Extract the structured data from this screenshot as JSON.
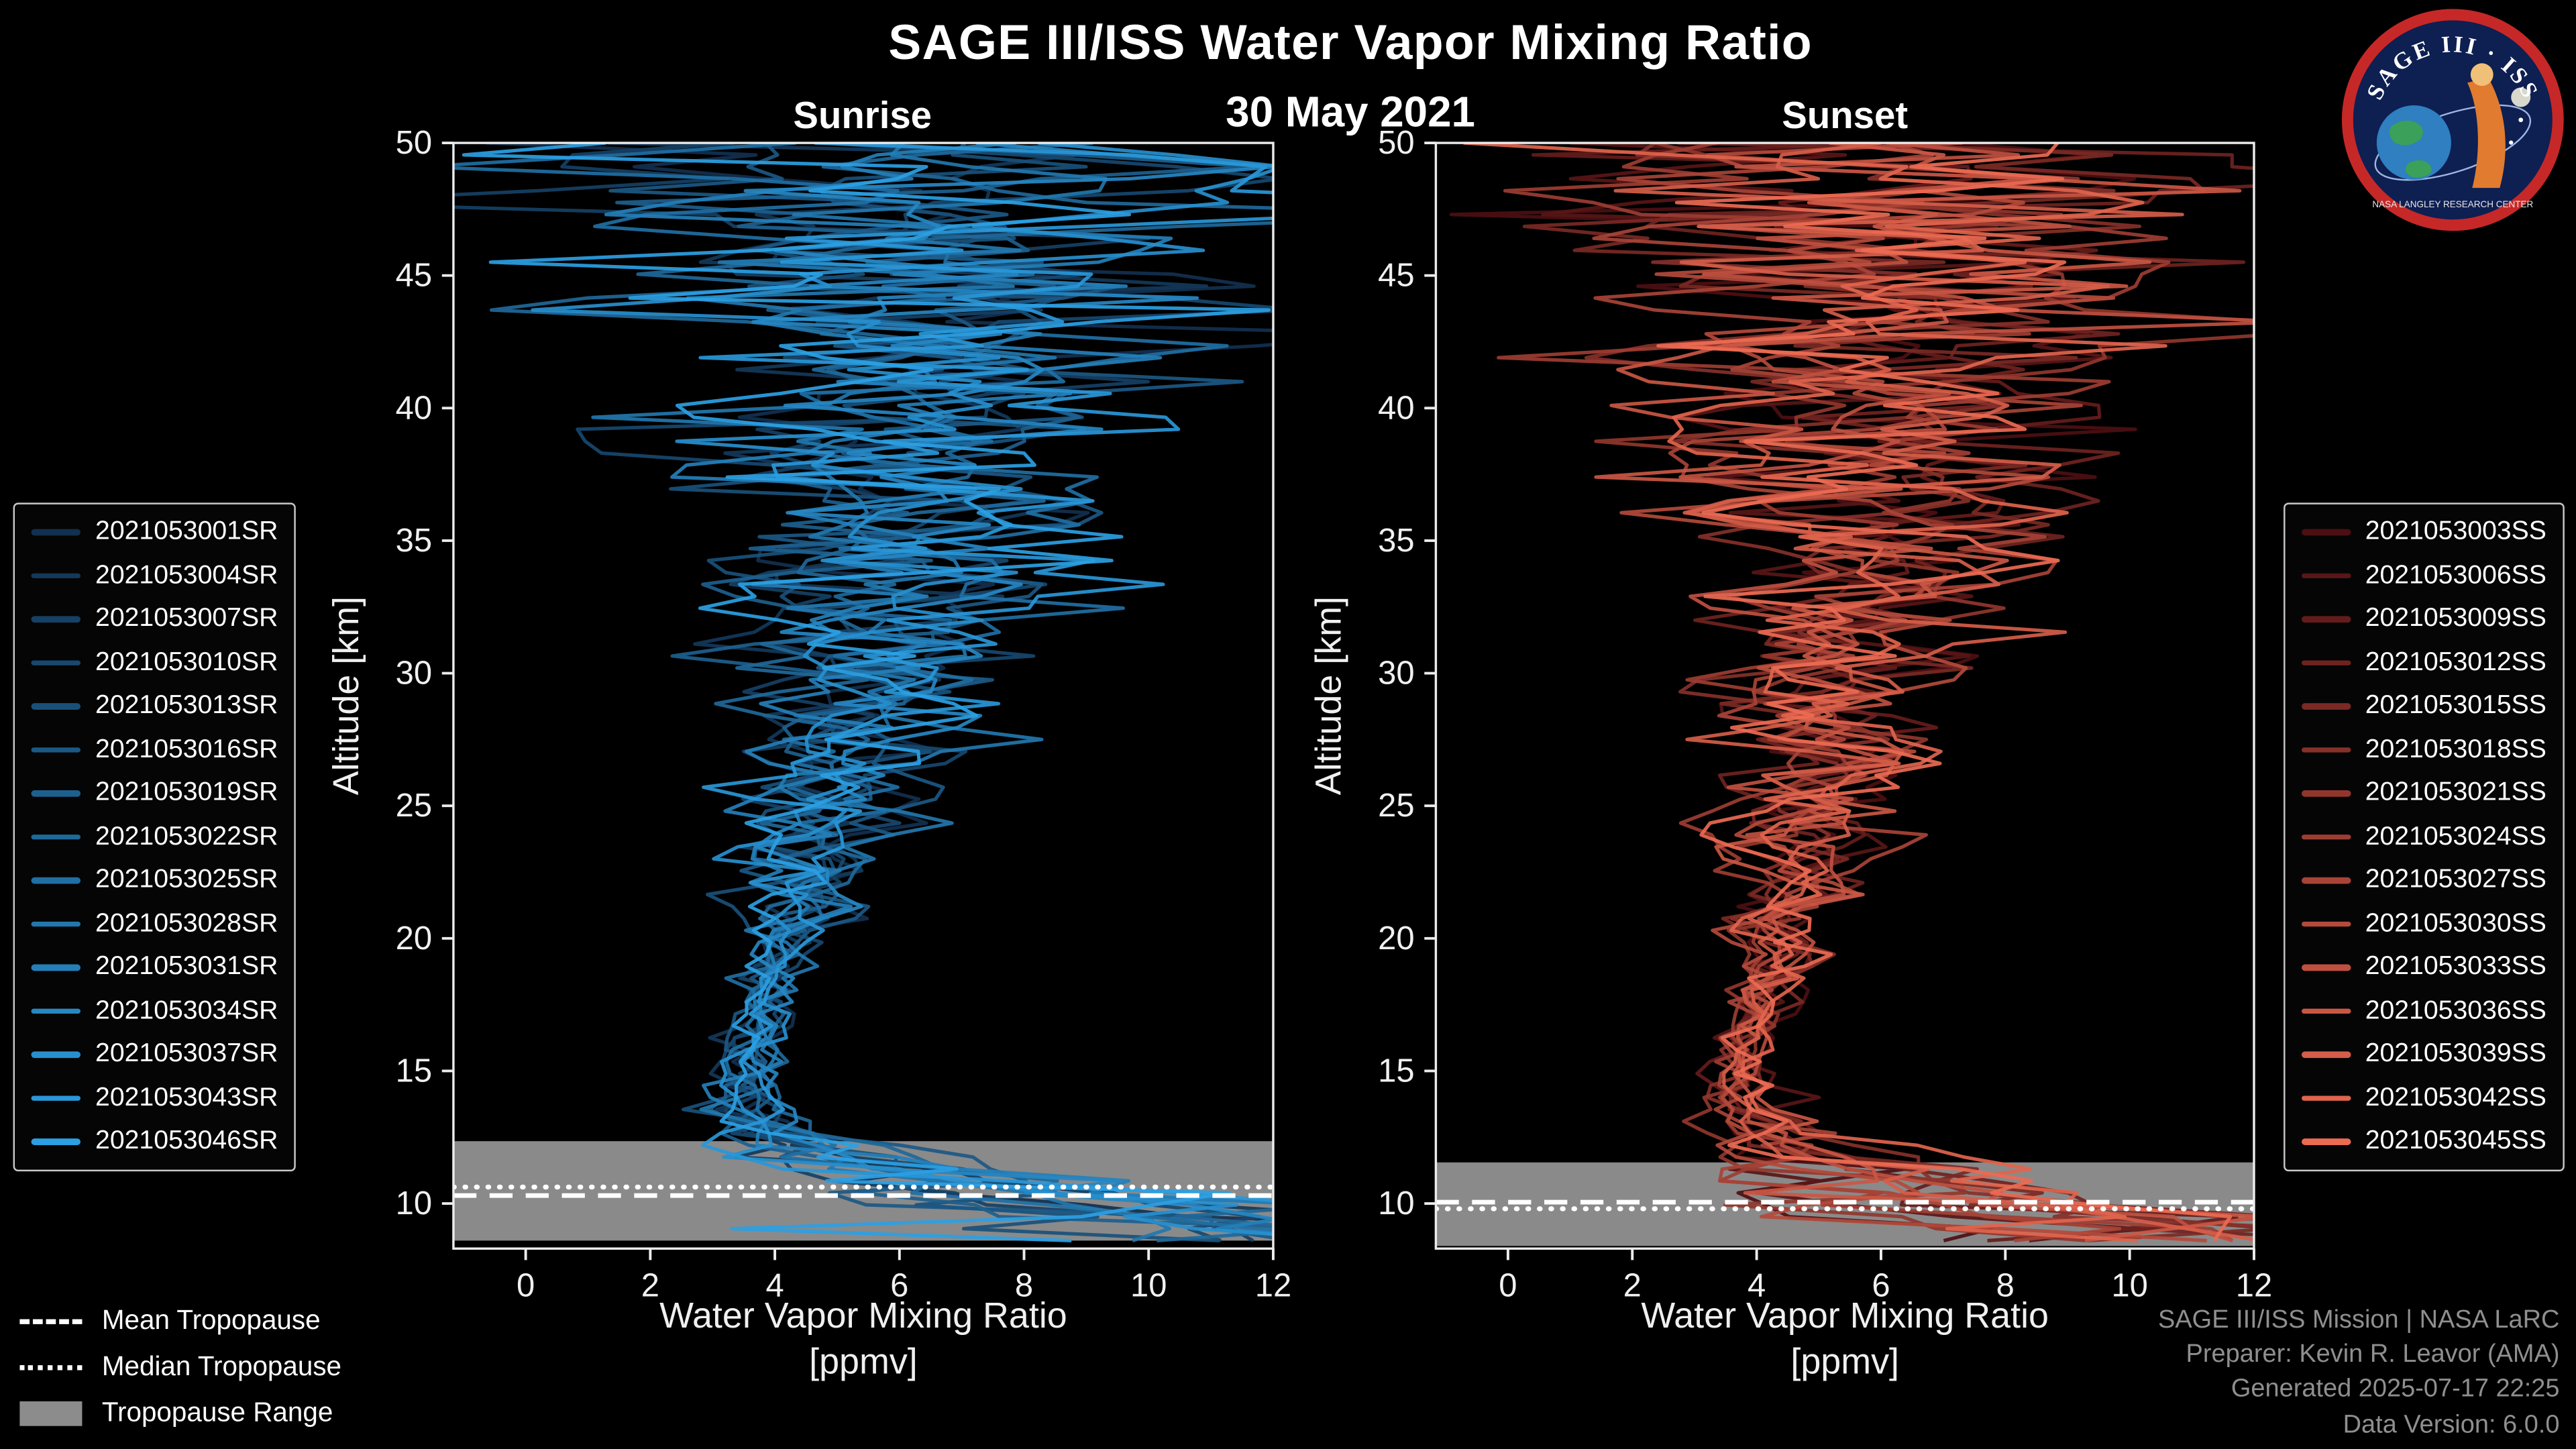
{
  "header": {
    "title": "SAGE III/ISS Water Vapor Mixing Ratio",
    "date": "30 May 2021"
  },
  "logo": {
    "arc_text": "SAGE III · ISS",
    "banner": "NASA LANGLEY RESEARCH CENTER"
  },
  "tropopause_legend": {
    "mean": "Mean Tropopause",
    "median": "Median Tropopause",
    "range": "Tropopause Range"
  },
  "credits": [
    "SAGE III/ISS Mission | NASA LaRC",
    "Preparer: Kevin R. Leavor (AMA)",
    "Generated 2025-07-17 22:25",
    "Data Version: 6.0.0"
  ],
  "chart_data": [
    {
      "type": "line",
      "title": "Sunrise",
      "xlabel": "Water Vapor Mixing Ratio",
      "xlabel2": "[ppmv]",
      "ylabel": "Altitude [km]",
      "xlim": [
        -1.16,
        12
      ],
      "ylim": [
        8.3,
        50
      ],
      "xticks": [
        0,
        2,
        4,
        6,
        8,
        10,
        12
      ],
      "yticks": [
        10,
        15,
        20,
        25,
        30,
        35,
        40,
        45,
        50
      ],
      "grid": false,
      "legend_position": "left",
      "color_dark": "#12304f",
      "color_bright": "#2b9fe3",
      "tropopause": {
        "mean": 10.3,
        "median": 10.62,
        "range": [
          8.6,
          12.35
        ]
      },
      "profile": {
        "step": 0.45,
        "mean": [
          [
            8.3,
            11.6
          ],
          [
            9,
            10.2
          ],
          [
            9.5,
            9.2
          ],
          [
            10,
            8.0
          ],
          [
            10.5,
            6.9
          ],
          [
            11,
            5.9
          ],
          [
            11.5,
            5.1
          ],
          [
            12,
            4.5
          ],
          [
            12.5,
            4.05
          ],
          [
            13,
            3.75
          ],
          [
            14,
            3.55
          ],
          [
            15,
            3.5
          ],
          [
            16,
            3.6
          ],
          [
            17,
            3.7
          ],
          [
            18,
            3.85
          ],
          [
            20,
            4.15
          ],
          [
            22,
            4.45
          ],
          [
            25,
            4.9
          ],
          [
            28,
            5.2
          ],
          [
            31,
            5.5
          ],
          [
            34,
            5.8
          ],
          [
            37,
            6.0
          ],
          [
            40,
            6.1
          ],
          [
            44,
            6.2
          ],
          [
            50,
            6.3
          ]
        ],
        "sigma": [
          [
            8.3,
            2.8
          ],
          [
            9,
            2.5
          ],
          [
            10,
            2.1
          ],
          [
            11,
            1.5
          ],
          [
            12,
            0.8
          ],
          [
            13,
            0.45
          ],
          [
            14,
            0.3
          ],
          [
            15,
            0.26
          ],
          [
            16,
            0.26
          ],
          [
            17,
            0.28
          ],
          [
            18,
            0.32
          ],
          [
            20,
            0.42
          ],
          [
            22,
            0.55
          ],
          [
            25,
            0.75
          ],
          [
            28,
            0.95
          ],
          [
            31,
            1.15
          ],
          [
            34,
            1.4
          ],
          [
            37,
            1.7
          ],
          [
            40,
            2.0
          ],
          [
            43,
            2.4
          ],
          [
            46,
            2.9
          ],
          [
            50,
            3.5
          ]
        ]
      },
      "series": [
        {
          "name": "2021053001SR",
          "seed": 3
        },
        {
          "name": "2021053004SR",
          "seed": 17
        },
        {
          "name": "2021053007SR",
          "seed": 29
        },
        {
          "name": "2021053010SR",
          "seed": 41
        },
        {
          "name": "2021053013SR",
          "seed": 53
        },
        {
          "name": "2021053016SR",
          "seed": 67
        },
        {
          "name": "2021053019SR",
          "seed": 79
        },
        {
          "name": "2021053022SR",
          "seed": 97
        },
        {
          "name": "2021053025SR",
          "seed": 113
        },
        {
          "name": "2021053028SR",
          "seed": 131
        },
        {
          "name": "2021053031SR",
          "seed": 149
        },
        {
          "name": "2021053034SR",
          "seed": 167
        },
        {
          "name": "2021053037SR",
          "seed": 181
        },
        {
          "name": "2021053043SR",
          "seed": 199
        },
        {
          "name": "2021053046SR",
          "seed": 211
        }
      ]
    },
    {
      "type": "line",
      "title": "Sunset",
      "xlabel": "Water Vapor Mixing Ratio",
      "xlabel2": "[ppmv]",
      "ylabel": "Altitude [km]",
      "xlim": [
        -1.16,
        12
      ],
      "ylim": [
        8.3,
        50
      ],
      "xticks": [
        0,
        2,
        4,
        6,
        8,
        10,
        12
      ],
      "yticks": [
        10,
        15,
        20,
        25,
        30,
        35,
        40,
        45,
        50
      ],
      "grid": false,
      "legend_position": "right",
      "color_dark": "#4d0f12",
      "color_bright": "#ec6a52",
      "tropopause": {
        "mean": 10.05,
        "median": 9.8,
        "range": [
          8.4,
          11.55
        ]
      },
      "profile": {
        "step": 0.45,
        "mean": [
          [
            8.3,
            11.7
          ],
          [
            9,
            10.4
          ],
          [
            9.5,
            9.4
          ],
          [
            10,
            8.2
          ],
          [
            10.5,
            7.1
          ],
          [
            11,
            6.1
          ],
          [
            11.5,
            5.3
          ],
          [
            12,
            4.7
          ],
          [
            12.5,
            4.3
          ],
          [
            13,
            4.0
          ],
          [
            14,
            3.8
          ],
          [
            15,
            3.75
          ],
          [
            16,
            3.85
          ],
          [
            17,
            3.95
          ],
          [
            18,
            4.1
          ],
          [
            20,
            4.35
          ],
          [
            22,
            4.6
          ],
          [
            25,
            5.0
          ],
          [
            28,
            5.3
          ],
          [
            31,
            5.6
          ],
          [
            34,
            5.9
          ],
          [
            37,
            6.05
          ],
          [
            40,
            6.15
          ],
          [
            44,
            6.25
          ],
          [
            50,
            6.35
          ]
        ],
        "sigma": [
          [
            8.3,
            2.8
          ],
          [
            9,
            2.5
          ],
          [
            10,
            2.1
          ],
          [
            11,
            1.5
          ],
          [
            12,
            0.8
          ],
          [
            13,
            0.45
          ],
          [
            14,
            0.3
          ],
          [
            15,
            0.26
          ],
          [
            16,
            0.26
          ],
          [
            17,
            0.28
          ],
          [
            18,
            0.32
          ],
          [
            20,
            0.42
          ],
          [
            22,
            0.55
          ],
          [
            25,
            0.75
          ],
          [
            28,
            0.95
          ],
          [
            31,
            1.15
          ],
          [
            34,
            1.4
          ],
          [
            37,
            1.7
          ],
          [
            40,
            2.0
          ],
          [
            43,
            2.4
          ],
          [
            46,
            2.9
          ],
          [
            50,
            3.5
          ]
        ]
      },
      "series": [
        {
          "name": "2021053003SS",
          "seed": 5
        },
        {
          "name": "2021053006SS",
          "seed": 19
        },
        {
          "name": "2021053009SS",
          "seed": 31
        },
        {
          "name": "2021053012SS",
          "seed": 43
        },
        {
          "name": "2021053015SS",
          "seed": 59
        },
        {
          "name": "2021053018SS",
          "seed": 71
        },
        {
          "name": "2021053021SS",
          "seed": 83
        },
        {
          "name": "2021053024SS",
          "seed": 101
        },
        {
          "name": "2021053027SS",
          "seed": 127
        },
        {
          "name": "2021053030SS",
          "seed": 139
        },
        {
          "name": "2021053033SS",
          "seed": 151
        },
        {
          "name": "2021053036SS",
          "seed": 163
        },
        {
          "name": "2021053039SS",
          "seed": 179
        },
        {
          "name": "2021053042SS",
          "seed": 193
        },
        {
          "name": "2021053045SS",
          "seed": 227
        }
      ]
    }
  ]
}
